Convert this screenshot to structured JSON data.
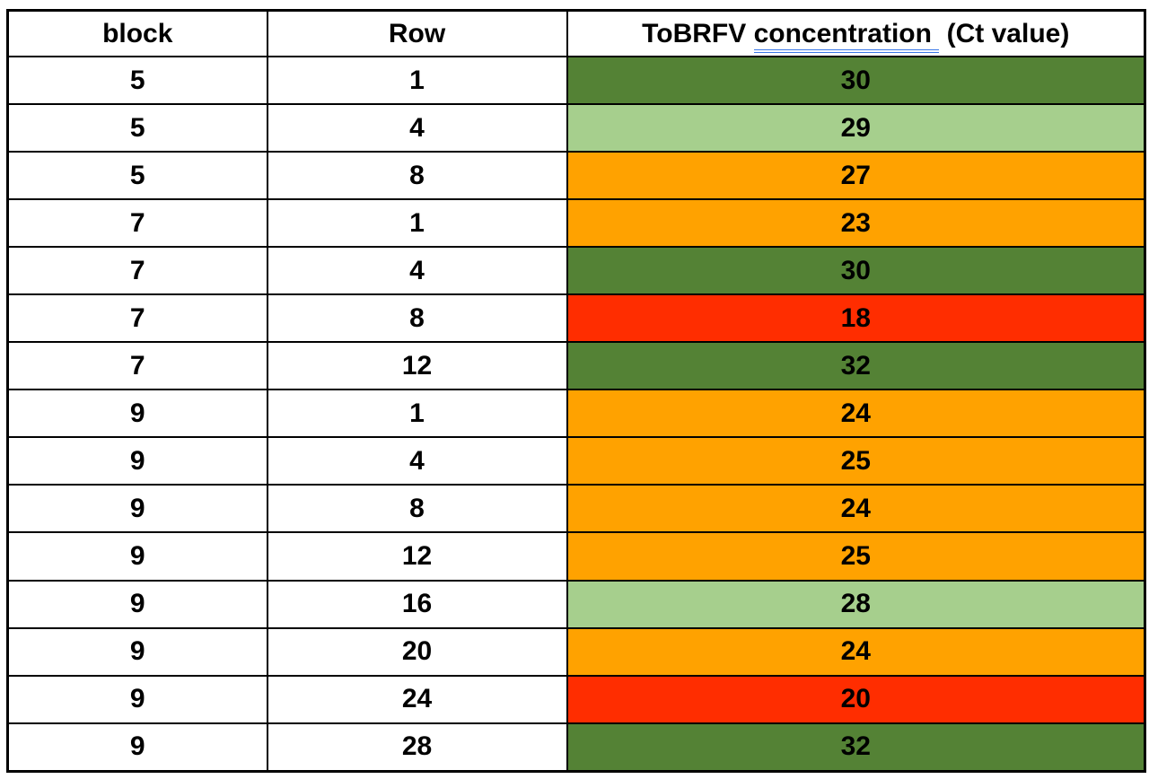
{
  "table": {
    "headers": {
      "col1": "block",
      "col2": "Row",
      "col3_prefix": "ToBRFV ",
      "col3_underlined": "concentration ",
      "col3_suffix": " (Ct value)"
    },
    "rows": [
      {
        "block": "5",
        "row": "1",
        "ct": "30",
        "level": "dark_green"
      },
      {
        "block": "5",
        "row": "4",
        "ct": "29",
        "level": "light_green"
      },
      {
        "block": "5",
        "row": "8",
        "ct": "27",
        "level": "orange"
      },
      {
        "block": "7",
        "row": "1",
        "ct": "23",
        "level": "orange"
      },
      {
        "block": "7",
        "row": "4",
        "ct": "30",
        "level": "dark_green"
      },
      {
        "block": "7",
        "row": "8",
        "ct": "18",
        "level": "red"
      },
      {
        "block": "7",
        "row": "12",
        "ct": "32",
        "level": "dark_green"
      },
      {
        "block": "9",
        "row": "1",
        "ct": "24",
        "level": "orange"
      },
      {
        "block": "9",
        "row": "4",
        "ct": "25",
        "level": "orange"
      },
      {
        "block": "9",
        "row": "8",
        "ct": "24",
        "level": "orange"
      },
      {
        "block": "9",
        "row": "12",
        "ct": "25",
        "level": "orange"
      },
      {
        "block": "9",
        "row": "16",
        "ct": "28",
        "level": "light_green"
      },
      {
        "block": "9",
        "row": "20",
        "ct": "24",
        "level": "orange"
      },
      {
        "block": "9",
        "row": "24",
        "ct": "20",
        "level": "red"
      },
      {
        "block": "9",
        "row": "28",
        "ct": "32",
        "level": "dark_green"
      }
    ]
  },
  "colors": {
    "dark_green": "#548235",
    "light_green": "#A6CF8D",
    "orange": "#FFA200",
    "red": "#FF2D00",
    "underline_blue": "#3B78E7",
    "border": "#000000",
    "text": "#000000",
    "background": "#FFFFFF"
  },
  "chart_data": {
    "type": "table",
    "columns": [
      "block",
      "Row",
      "ToBRFV concentration  (Ct value)"
    ],
    "rows": [
      [
        5,
        1,
        30
      ],
      [
        5,
        4,
        29
      ],
      [
        5,
        8,
        27
      ],
      [
        7,
        1,
        23
      ],
      [
        7,
        4,
        30
      ],
      [
        7,
        8,
        18
      ],
      [
        7,
        12,
        32
      ],
      [
        9,
        1,
        24
      ],
      [
        9,
        4,
        25
      ],
      [
        9,
        8,
        24
      ],
      [
        9,
        12,
        25
      ],
      [
        9,
        16,
        28
      ],
      [
        9,
        20,
        24
      ],
      [
        9,
        24,
        20
      ],
      [
        9,
        28,
        32
      ]
    ],
    "ct_cell_color_categories": [
      "dark_green",
      "light_green",
      "orange",
      "orange",
      "dark_green",
      "red",
      "dark_green",
      "orange",
      "orange",
      "orange",
      "orange",
      "light_green",
      "orange",
      "red",
      "dark_green"
    ],
    "layout_hints": {
      "grid": true,
      "header_background": "white",
      "ct_column_colored": true,
      "text_style": "bold black, centered"
    }
  }
}
